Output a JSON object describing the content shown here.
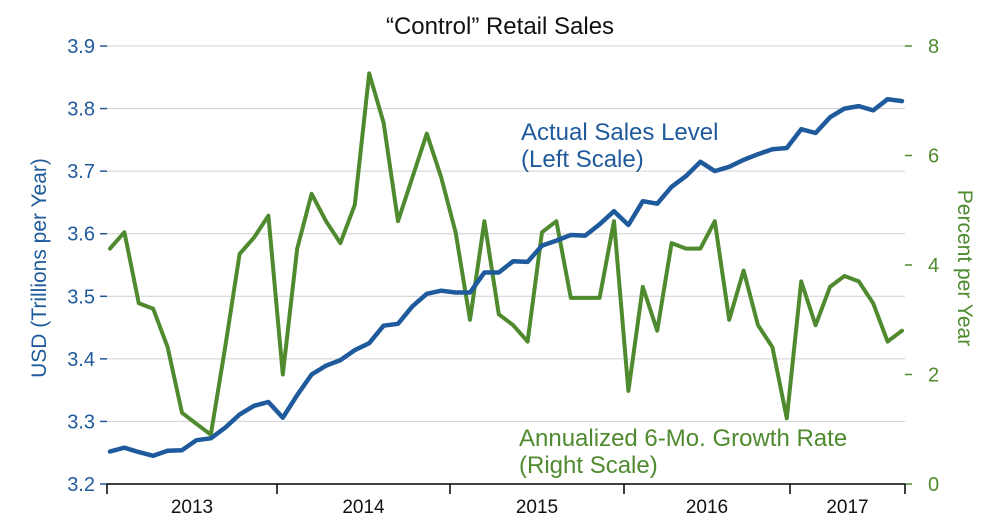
{
  "chart_data": {
    "type": "line",
    "title": "“Control” Retail Sales",
    "ylabel_left": "USD (Trillions  per Year)",
    "ylabel_right": "Percent per Year",
    "ylim_left": [
      3.2,
      3.9
    ],
    "ylim_right": [
      0,
      8
    ],
    "yticks_left": [
      "3.2",
      "3.3",
      "3.4",
      "3.5",
      "3.6",
      "3.7",
      "3.8",
      "3.9"
    ],
    "yticks_right": [
      "0",
      "2",
      "4",
      "6",
      "8"
    ],
    "xticks": [
      "2013",
      "2014",
      "2015",
      "2016",
      "2017"
    ],
    "grid": true,
    "annotations": {
      "level_line1": "Actual Sales Level",
      "level_line2": "(Left Scale)",
      "growth_line1": "Annualized 6-Mo. Growth Rate",
      "growth_line2": "(Right Scale)"
    },
    "series": [
      {
        "name": "Actual Sales Level",
        "axis": "left",
        "color": "#1f5a9c",
        "values": [
          3.252,
          3.258,
          3.251,
          3.245,
          3.253,
          3.254,
          3.27,
          3.273,
          3.29,
          3.311,
          3.325,
          3.331,
          3.306,
          3.342,
          3.375,
          3.389,
          3.398,
          3.414,
          3.425,
          3.453,
          3.456,
          3.484,
          3.504,
          3.509,
          3.506,
          3.506,
          3.538,
          3.538,
          3.556,
          3.555,
          3.581,
          3.589,
          3.598,
          3.597,
          3.615,
          3.636,
          3.614,
          3.652,
          3.648,
          3.675,
          3.692,
          3.715,
          3.7,
          3.707,
          3.718,
          3.727,
          3.735,
          3.737,
          3.767,
          3.761,
          3.786,
          3.8,
          3.804,
          3.797,
          3.815,
          3.812
        ]
      },
      {
        "name": "Annualized 6-Mo. Growth Rate",
        "axis": "right",
        "color": "#4f8a2f",
        "values": [
          4.3,
          4.6,
          3.3,
          3.2,
          2.5,
          1.3,
          1.1,
          0.9,
          2.5,
          4.2,
          4.5,
          4.9,
          2.0,
          4.3,
          5.3,
          4.8,
          4.4,
          5.1,
          7.5,
          6.6,
          4.8,
          5.6,
          6.4,
          5.6,
          4.6,
          3.0,
          4.8,
          3.1,
          2.9,
          2.6,
          4.6,
          4.8,
          3.4,
          3.4,
          3.4,
          4.8,
          1.7,
          3.6,
          2.8,
          4.4,
          4.3,
          4.3,
          4.8,
          3.0,
          3.9,
          2.9,
          2.5,
          1.2,
          3.7,
          2.9,
          3.6,
          3.8,
          3.7,
          3.3,
          2.6,
          2.8
        ]
      }
    ]
  }
}
